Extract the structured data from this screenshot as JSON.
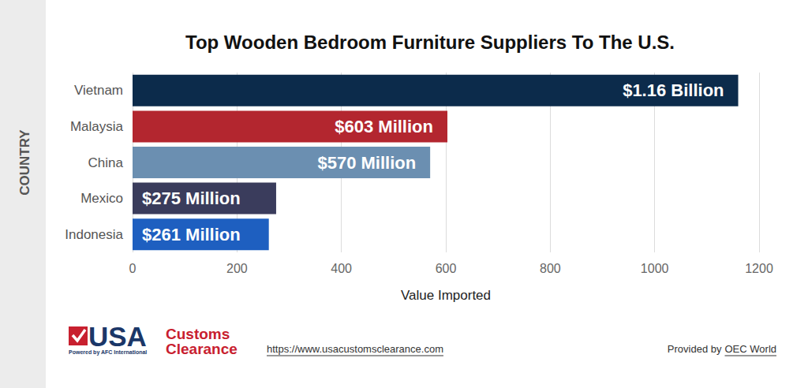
{
  "chart_data": {
    "type": "bar",
    "orientation": "horizontal",
    "title": "Top Wooden Bedroom Furniture Suppliers To The U.S.",
    "x_label": "Value Imported",
    "y_label": "COUNTRY",
    "categories": [
      "Vietnam",
      "Malaysia",
      "China",
      "Mexico",
      "Indonesia"
    ],
    "values": [
      1160,
      603,
      570,
      275,
      261
    ],
    "value_labels": [
      "$1.16 Billion",
      "$603 Million",
      "$570 Million",
      "$275 Million",
      "$261 Million"
    ],
    "colors": [
      "#0c2b4b",
      "#b3262f",
      "#6b8fb1",
      "#3a3c5c",
      "#1e5fc0"
    ],
    "data_labels": true,
    "xlim": [
      0,
      1200
    ],
    "xticks": [
      0,
      200,
      400,
      600,
      800,
      1000,
      1200
    ],
    "grid": true,
    "footer": {
      "logo": {
        "main": "USA",
        "line1": "Customs",
        "line2": "Clearance",
        "tagline": "Powered by AFC International"
      },
      "url": "https://www.usacustomsclearance.com",
      "credit": {
        "prefix": "Provided by",
        "source": "OEC World"
      }
    }
  }
}
